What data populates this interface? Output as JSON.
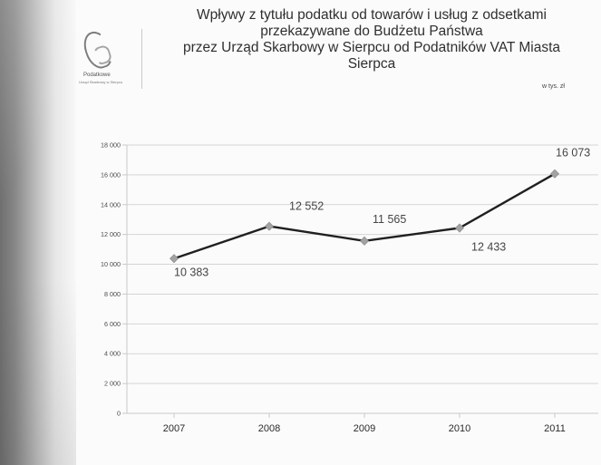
{
  "header": {
    "title_lines": [
      "Wpływy z tytułu podatku od towarów i usług z odsetkami",
      "przekazywane do Budżetu Państwa",
      "przez Urząd Skarbowy w Sierpcu od Podatników VAT Miasta",
      "Sierpca"
    ],
    "unit": "w tys. zł",
    "logo_text": "Podatkowe",
    "logo_subtext": "Urząd Skarbowy w Sierpcu"
  },
  "chart_data": {
    "type": "line",
    "title": "Wpływy z tytułu podatku od towarów i usług z odsetkami przekazywane do Budżetu Państwa przez Urząd Skarbowy w Sierpcu od Podatników VAT Miasta Sierpca",
    "categories": [
      "2007",
      "2008",
      "2009",
      "2010",
      "2011"
    ],
    "values": [
      10383,
      12552,
      11565,
      12433,
      16073
    ],
    "data_labels": [
      "10 383",
      "12 552",
      "11 565",
      "12 433",
      "16 073"
    ],
    "y_tick_values": [
      0,
      2000,
      4000,
      6000,
      8000,
      10000,
      12000,
      14000,
      16000,
      18000
    ],
    "y_tick_labels": [
      "0",
      "2 000",
      "4 000",
      "6 000",
      "8 000",
      "10 000",
      "12 000",
      "14 000",
      "16 000",
      "18 000"
    ],
    "ylim": [
      0,
      18000
    ],
    "grid": true,
    "legend": "none",
    "unit": "w tys. zł",
    "colors": {
      "line": "#202020",
      "marker": "#a3a3a3",
      "grid": "#d5d5d5",
      "axis": "#c9c9c9"
    }
  }
}
